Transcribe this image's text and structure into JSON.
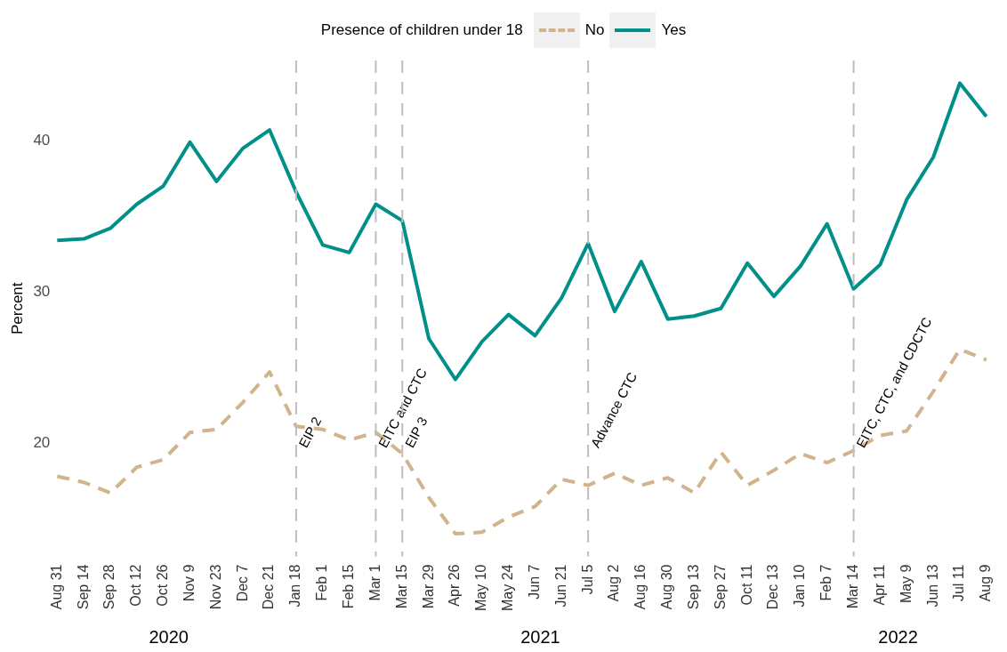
{
  "chart_data": {
    "type": "line",
    "ylabel": "Percent",
    "legend_title": "Presence of children under 18",
    "legend": "top",
    "categories": [
      "Aug 31",
      "Sep 14",
      "Sep 28",
      "Oct 12",
      "Oct 26",
      "Nov 9",
      "Nov 23",
      "Dec 7",
      "Dec 21",
      "Jan 18",
      "Feb 1",
      "Feb 15",
      "Mar 1",
      "Mar 15",
      "Mar 29",
      "Apr 26",
      "May 10",
      "May 24",
      "Jun 7",
      "Jun 21",
      "Jul 5",
      "Aug 2",
      "Aug 16",
      "Aug 30",
      "Sep 13",
      "Sep 27",
      "Oct 11",
      "Dec 13",
      "Jan 10",
      "Feb 7",
      "Mar 14",
      "Apr 11",
      "May 9",
      "Jun 13",
      "Jul 11",
      "Aug 9"
    ],
    "series": [
      {
        "name": "No",
        "color": "#d2b48c",
        "line_style": "dashed",
        "values": [
          17.8,
          17.4,
          16.7,
          18.4,
          18.9,
          20.7,
          20.9,
          22.7,
          24.7,
          21.1,
          20.9,
          20.2,
          20.7,
          19.3,
          16.4,
          14.0,
          14.1,
          15.1,
          15.8,
          17.6,
          17.2,
          18.0,
          17.2,
          17.7,
          16.7,
          19.4,
          17.2,
          18.2,
          19.3,
          18.7,
          19.5,
          20.5,
          20.8,
          23.4,
          26.2,
          25.5
        ]
      },
      {
        "name": "Yes",
        "color": "#009089",
        "line_style": "solid",
        "values": [
          33.4,
          33.5,
          34.2,
          35.8,
          37.0,
          39.9,
          37.3,
          39.5,
          40.7,
          36.6,
          33.1,
          32.6,
          35.8,
          34.7,
          26.9,
          24.2,
          26.7,
          28.5,
          27.1,
          29.6,
          33.2,
          28.7,
          32.0,
          28.2,
          28.4,
          28.9,
          31.9,
          29.7,
          31.7,
          34.5,
          30.2,
          31.8,
          36.1,
          38.9,
          43.8,
          41.6
        ]
      }
    ],
    "ylim": [
      12.5,
      45.3
    ],
    "yticks": [
      20,
      30,
      40
    ],
    "grid": false,
    "marker": "none",
    "ref_lines": [
      {
        "axis": "x",
        "value": "Jan 18",
        "label": "EIP 2",
        "color": "#bdbdbd",
        "line_style": "dashed"
      },
      {
        "axis": "x",
        "value": "Mar 1",
        "label": "EITC and CTC",
        "color": "#bdbdbd",
        "line_style": "dashed"
      },
      {
        "axis": "x",
        "value": "Mar 15",
        "label": "EIP 3",
        "color": "#bdbdbd",
        "line_style": "dashed"
      },
      {
        "axis": "x",
        "value": "Jul 5",
        "label": "Advance CTC",
        "color": "#bdbdbd",
        "line_style": "dashed"
      },
      {
        "axis": "x",
        "value": "Mar 14",
        "label": "EITC, CTC, and CDCTC",
        "color": "#bdbdbd",
        "line_style": "dashed"
      }
    ],
    "annotations": [
      "2020",
      "2021",
      "2022"
    ]
  }
}
